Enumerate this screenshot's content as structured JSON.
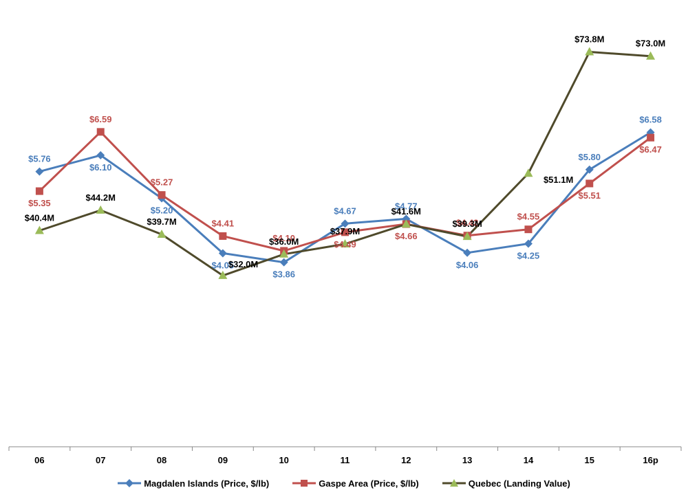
{
  "chart_data": {
    "type": "line",
    "categories": [
      "06",
      "07",
      "08",
      "09",
      "10",
      "11",
      "12",
      "13",
      "14",
      "15",
      "16p"
    ],
    "series": [
      {
        "name": "Magdalen Islands (Price, $/lb)",
        "axis": "left",
        "color": "#4a7ebb",
        "marker": "diamond",
        "values": [
          5.76,
          6.1,
          5.2,
          4.05,
          3.86,
          4.67,
          4.77,
          4.06,
          4.25,
          5.8,
          6.58
        ],
        "labels": [
          "$5.76",
          "$6.10",
          "$5.20",
          "$4.05",
          "$3.86",
          "$4.67",
          "$4.77",
          "$4.06",
          "$4.25",
          "$5.80",
          "$6.58"
        ],
        "label_positions": [
          "above",
          "below",
          "below",
          "below",
          "below",
          "above",
          "above",
          "below",
          "below",
          "above",
          "above"
        ]
      },
      {
        "name": "Gaspe Area (Price, $/lb)",
        "axis": "left",
        "color": "#c0504d",
        "marker": "square",
        "values": [
          5.35,
          6.59,
          5.27,
          4.41,
          4.1,
          4.49,
          4.66,
          4.42,
          4.55,
          5.51,
          6.47
        ],
        "labels": [
          "$5.35",
          "$6.59",
          "$5.27",
          "$4.41",
          "$4.10",
          "$4.49",
          "$4.66",
          "$4.42",
          "$4.55",
          "$5.51",
          "$6.47"
        ],
        "label_positions": [
          "below",
          "above",
          "above",
          "above",
          "above",
          "below",
          "below",
          "above",
          "above",
          "below",
          "below"
        ]
      },
      {
        "name": "Quebec (Landing Value)",
        "axis": "right",
        "color": "#4f4a2b",
        "marker": "triangle",
        "marker_color": "#9bbb59",
        "values": [
          40.4,
          44.2,
          39.7,
          32.0,
          36.0,
          37.9,
          41.6,
          39.3,
          51.1,
          73.8,
          73.0
        ],
        "labels": [
          "$40.4M",
          "$44.2M",
          "$39.7M",
          "$32.0M",
          "$36.0M",
          "$37.9M",
          "$41.6M",
          "$39.3M",
          "$51.1M",
          "$73.8M",
          "$73.0M"
        ],
        "label_positions": [
          "above",
          "above",
          "above",
          "right",
          "above",
          "above",
          "above",
          "above",
          "right",
          "above",
          "above"
        ]
      }
    ],
    "left_axis_range": [
      0,
      9.35
    ],
    "right_axis_range": [
      0,
      83.5
    ],
    "axes_visible": false,
    "grid": false,
    "legend_position": "bottom"
  }
}
